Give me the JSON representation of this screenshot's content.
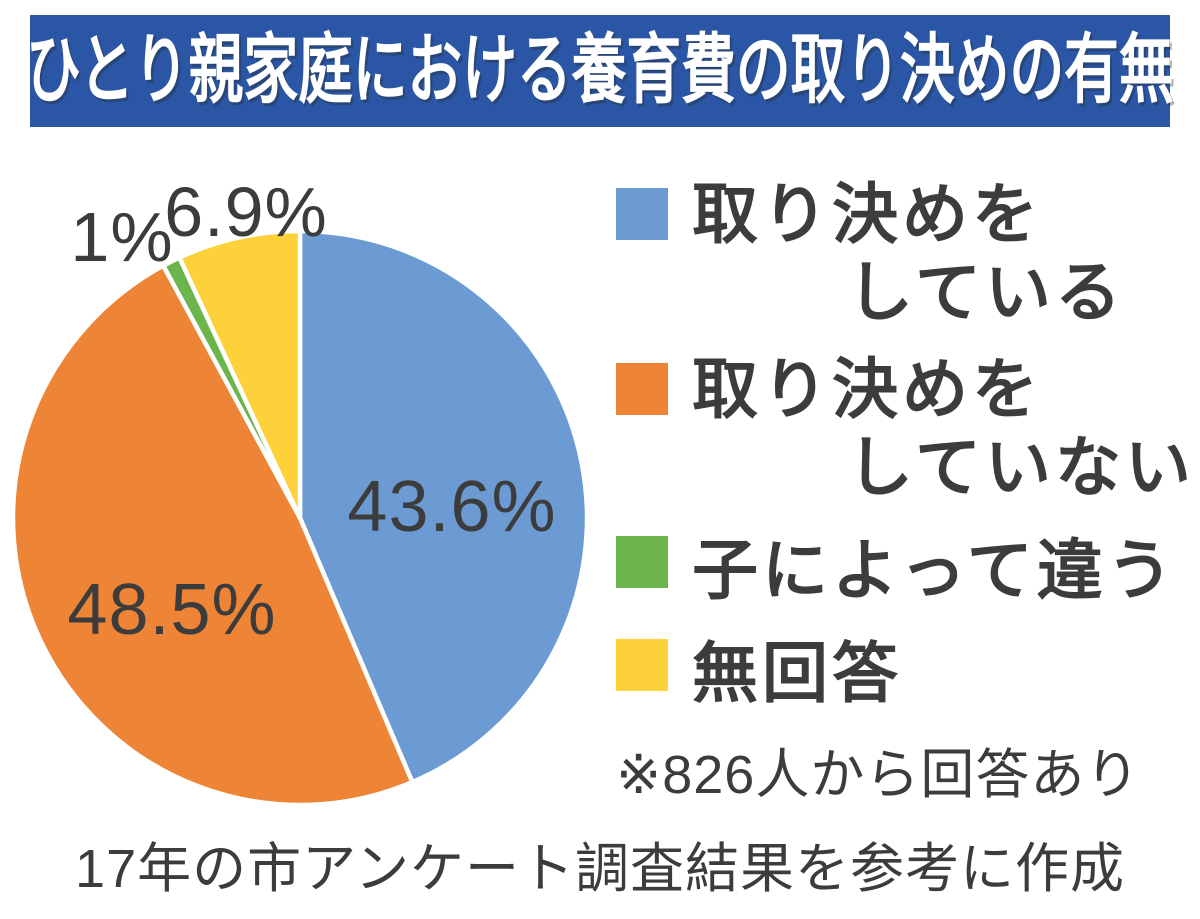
{
  "header": {
    "title": "ひとり親家庭における養育費の取り決めの有無",
    "bg_color": "#2a56a5",
    "text_color": "#ffffff"
  },
  "chart_data": {
    "type": "pie",
    "title": "ひとり親家庭における養育費の取り決めの有無",
    "categories": [
      "取り決めをしている",
      "取り決めをしていない",
      "子によって違う",
      "無回答"
    ],
    "values": [
      43.6,
      48.5,
      1.0,
      6.9
    ],
    "slice_labels": [
      "43.6%",
      "48.5%",
      "1%",
      "6.9%"
    ],
    "colors": [
      "#6b9bd2",
      "#ee8435",
      "#6cb54d",
      "#fdd13a"
    ],
    "start_angle": "12-oclock",
    "direction": "clockwise",
    "slice_border_color": "#ffffff",
    "legend_position": "right",
    "note": "※826人から回答あり",
    "source": "17年の市アンケート調査結果を参考に作成"
  },
  "legend": {
    "items": [
      {
        "line1": "取り決めを",
        "line2": "している",
        "color": "#6b9bd2"
      },
      {
        "line1": "取り決めを",
        "line2": "していない",
        "color": "#ee8435"
      },
      {
        "line1": "子によって違う",
        "line2": "",
        "color": "#6cb54d"
      },
      {
        "line1": "無回答",
        "line2": "",
        "color": "#fdd13a"
      }
    ]
  }
}
